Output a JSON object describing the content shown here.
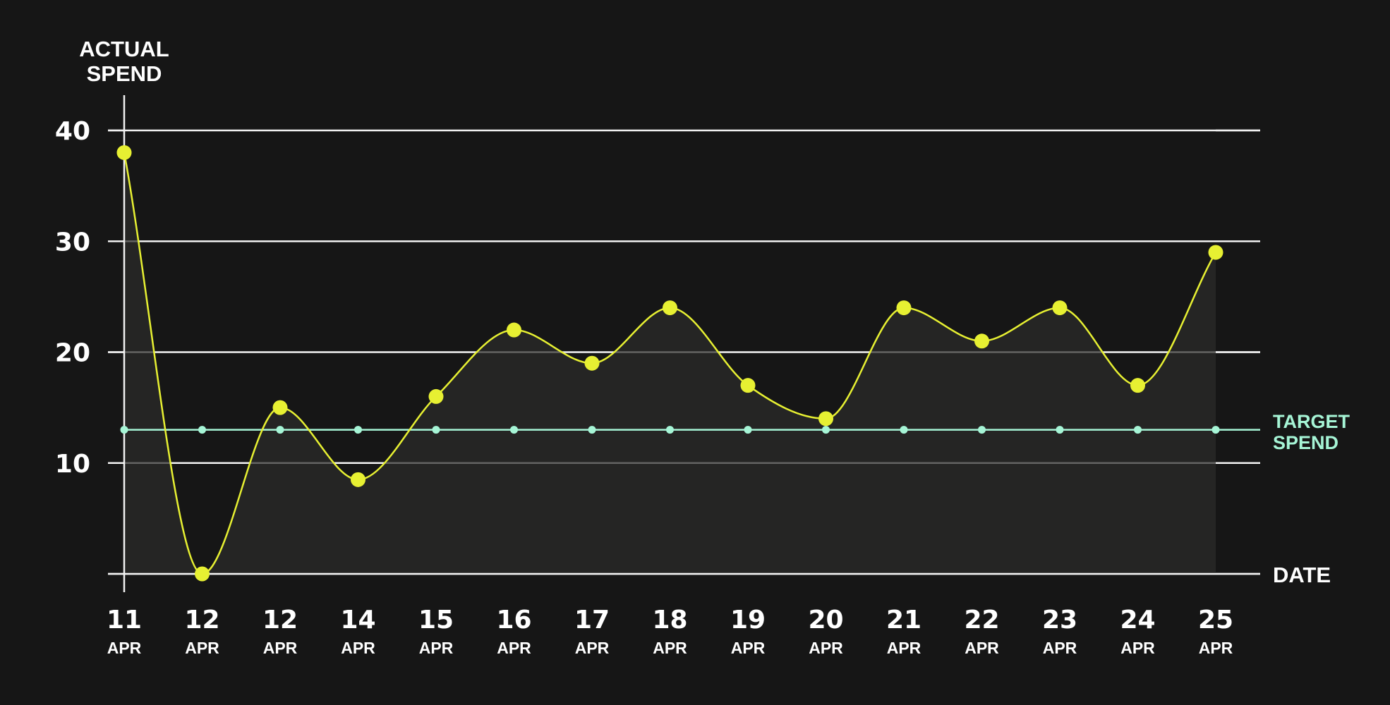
{
  "chart_data": {
    "type": "line",
    "ylabel": [
      "ACTUAL",
      "SPEND"
    ],
    "xlabel": "DATE",
    "x": [
      {
        "day": "11",
        "month": "APR"
      },
      {
        "day": "12",
        "month": "APR"
      },
      {
        "day": "12",
        "month": "APR"
      },
      {
        "day": "14",
        "month": "APR"
      },
      {
        "day": "15",
        "month": "APR"
      },
      {
        "day": "16",
        "month": "APR"
      },
      {
        "day": "17",
        "month": "APR"
      },
      {
        "day": "18",
        "month": "APR"
      },
      {
        "day": "19",
        "month": "APR"
      },
      {
        "day": "20",
        "month": "APR"
      },
      {
        "day": "21",
        "month": "APR"
      },
      {
        "day": "22",
        "month": "APR"
      },
      {
        "day": "23",
        "month": "APR"
      },
      {
        "day": "24",
        "month": "APR"
      },
      {
        "day": "25",
        "month": "APR"
      }
    ],
    "yticks": [
      40,
      30,
      20,
      10
    ],
    "ylim": [
      0,
      40
    ],
    "grid": true,
    "series": [
      {
        "name": "ACTUAL SPEND",
        "color": "#e7f032",
        "style": "smooth-area",
        "values": [
          38,
          0,
          15,
          8.5,
          16,
          22,
          19,
          24,
          17,
          14,
          24,
          21,
          24,
          17,
          29
        ]
      },
      {
        "name": "TARGET SPEND",
        "label": [
          "TARGET",
          "SPEND"
        ],
        "color": "#a6f5d6",
        "style": "dotted-line",
        "values": [
          13,
          13,
          13,
          13,
          13,
          13,
          13,
          13,
          13,
          13,
          13,
          13,
          13,
          13,
          13
        ]
      }
    ],
    "colors": {
      "background": "#161616",
      "area": "#2b2b2a",
      "grid": "#f2f2f2",
      "text": "#ffffff"
    }
  }
}
